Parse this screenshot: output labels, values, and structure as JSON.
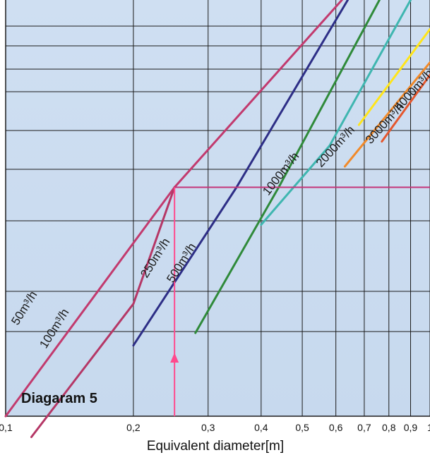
{
  "chart_data": {
    "type": "line",
    "title": "Diagaram 5",
    "xlabel": "Equivalent diameter[m]",
    "ylabel": "",
    "x_scale": "log",
    "xlim": [
      0.1,
      1.0
    ],
    "x_ticks": [
      0.1,
      0.2,
      0.3,
      0.4,
      0.5,
      0.6,
      0.7,
      0.8,
      0.9,
      1.0
    ],
    "x_tick_labels": [
      "0,1",
      "0,2",
      "0,3",
      "0,4",
      "0,5",
      "0,6",
      "0,7",
      "0,8",
      "0,9",
      "1"
    ],
    "grid": true,
    "legend": "none",
    "series": [
      {
        "name": "50m³/h",
        "label": "50m³/h",
        "color": "#c23a6e",
        "x": [
          0.1,
          0.25,
          0.62
        ],
        "y": [
          0.0,
          0.55,
          1.0
        ]
      },
      {
        "name": "100m³/h",
        "label": "100m³/h",
        "color": "#b53766",
        "x": [
          0.115,
          0.2,
          0.25
        ],
        "y": [
          -0.05,
          0.27,
          0.55
        ]
      },
      {
        "name": "250m³/h",
        "label": "250m³/h",
        "color": "#2d2e86",
        "x": [
          0.2,
          0.35,
          0.64
        ],
        "y": [
          0.17,
          0.55,
          1.0
        ]
      },
      {
        "name": "500m³/h",
        "label": "500m³/h",
        "color": "#2f8a3a",
        "x": [
          0.28,
          0.44,
          0.76
        ],
        "y": [
          0.2,
          0.55,
          1.0
        ]
      },
      {
        "name": "1000m³/h",
        "label": "1000m³/h",
        "color": "#3fb6b0",
        "x": [
          0.4,
          0.58,
          0.9
        ],
        "y": [
          0.46,
          0.65,
          1.0
        ]
      },
      {
        "name": "2000m³/h",
        "label": "2000m³/h",
        "color": "#ffe51a",
        "x": [
          0.68,
          1.0
        ],
        "y": [
          0.7,
          0.93
        ]
      },
      {
        "name": "3000m³/h",
        "label": "3000m³/h",
        "color": "#f18a2a",
        "x": [
          0.63,
          1.0
        ],
        "y": [
          0.6,
          0.85
        ]
      },
      {
        "name": "4000m³/h",
        "label": "4000m³/h",
        "color": "#e4572e",
        "x": [
          0.77,
          1.0
        ],
        "y": [
          0.66,
          0.82
        ]
      }
    ],
    "annotations": [
      {
        "type": "hline",
        "y": 0.55,
        "color": "#c4357a"
      },
      {
        "type": "vline",
        "x": 0.25,
        "from_y": 0.0,
        "to_y": 0.55,
        "color": "#ff4a8d",
        "arrow": "up"
      }
    ]
  }
}
